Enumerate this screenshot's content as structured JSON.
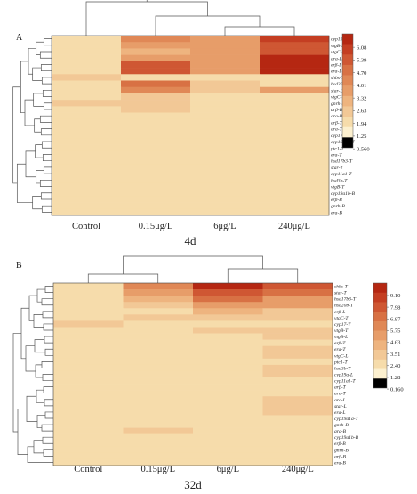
{
  "figure": {
    "palette": [
      "#fcf0cf",
      "#f6dcab",
      "#f2c896",
      "#eeb47f",
      "#e79d69",
      "#e08856",
      "#d87144",
      "#cf5733",
      "#c43e22",
      "#b52712"
    ],
    "legend_extreme_color": "#000000"
  },
  "chart_data": [
    {
      "type": "heatmap",
      "panel_label": "A",
      "title": "4d",
      "columns": [
        "Control",
        "0.15μg/L",
        "6μg/L",
        "240μg/L"
      ],
      "rows": [
        "cyp19a-L",
        "vtgB-L",
        "vtgC-L",
        "ara-L",
        "erβ-L",
        "era-L",
        "shbs-T",
        "hsd20b-T",
        "star-L",
        "vtgC-T",
        "gnrh-B",
        "arβ-B",
        "ara-B",
        "arβ-T",
        "ara-T",
        "cyp17-T",
        "cyp19a1a-T",
        "ptc1-T",
        "era-T",
        "hsd17b3-T",
        "star-T",
        "cyp11a1-T",
        "hsd3b-T",
        "vtgB-T",
        "cyp19a1b-B",
        "erβ-B",
        "gnrh-B",
        "era-B"
      ],
      "values": [
        [
          1.2,
          3.8,
          3.2,
          5.8
        ],
        [
          1.2,
          3.5,
          3.2,
          5.5
        ],
        [
          1.2,
          2.6,
          3.2,
          5.2
        ],
        [
          1.2,
          3.4,
          3.2,
          6.5
        ],
        [
          1.2,
          5.4,
          3.4,
          6.8
        ],
        [
          1.2,
          5.0,
          3.3,
          6.5
        ],
        [
          2.0,
          1.3,
          1.4,
          1.3
        ],
        [
          1.2,
          4.3,
          2.0,
          1.2
        ],
        [
          1.3,
          4.0,
          2.1,
          3.6
        ],
        [
          1.7,
          2.4,
          1.6,
          1.2
        ],
        [
          1.9,
          2.4,
          1.3,
          1.2
        ],
        [
          1.8,
          2.4,
          1.2,
          1.2
        ],
        [
          1.8,
          1.2,
          1.2,
          1.2
        ],
        [
          1.4,
          1.2,
          1.2,
          1.2
        ],
        [
          1.4,
          1.2,
          1.2,
          1.2
        ],
        [
          1.2,
          1.2,
          1.2,
          1.2
        ],
        [
          1.2,
          1.2,
          1.2,
          1.2
        ],
        [
          1.2,
          1.2,
          1.2,
          1.2
        ],
        [
          1.2,
          1.2,
          1.2,
          1.2
        ],
        [
          1.5,
          1.3,
          1.2,
          1.2
        ],
        [
          1.5,
          1.3,
          1.2,
          1.2
        ],
        [
          1.5,
          1.3,
          1.2,
          1.2
        ],
        [
          1.5,
          1.3,
          1.2,
          1.2
        ],
        [
          1.5,
          1.2,
          1.2,
          1.2
        ],
        [
          1.5,
          1.3,
          1.2,
          1.2
        ],
        [
          1.5,
          1.3,
          1.2,
          1.2
        ],
        [
          1.5,
          1.3,
          1.2,
          1.2
        ],
        [
          1.5,
          1.3,
          1.2,
          1.2
        ]
      ],
      "legend": {
        "ticks": [
          "6.08",
          "5.39",
          "4.70",
          "4.01",
          "3.32",
          "2.63",
          "1.94",
          "1.25",
          "0.560"
        ],
        "range": [
          0.56,
          6.77
        ]
      }
    },
    {
      "type": "heatmap",
      "panel_label": "B",
      "title": "32d",
      "columns": [
        "Control",
        "0.15μg/L",
        "6μg/L",
        "240μg/L"
      ],
      "rows": [
        "shbs-T",
        "star-T",
        "hsd17b3-T",
        "hsd20b-T",
        "erβ-L",
        "vtgC-T",
        "cyp17-T",
        "vtgB-T",
        "vtgB-L",
        "erβ-T",
        "era-T",
        "vtgC-L",
        "ptc1-T",
        "hsd3b-T",
        "cyp19a-L",
        "cyp11a1-T",
        "arβ-T",
        "ara-T",
        "ara-L",
        "star-L",
        "era-L",
        "cyp19a1a-T",
        "gnrh-B",
        "ara-B",
        "cyp19a1b-B",
        "erβ-B",
        "gnrh-B",
        "arβ-B",
        "era-B"
      ],
      "values": [
        [
          1.3,
          5.5,
          9.6,
          7.4
        ],
        [
          1.3,
          4.8,
          8.2,
          6.7
        ],
        [
          1.3,
          3.2,
          6.4,
          4.4
        ],
        [
          1.3,
          2.8,
          4.6,
          4.2
        ],
        [
          1.2,
          1.2,
          3.5,
          2.6
        ],
        [
          1.3,
          3.0,
          2.6,
          2.6
        ],
        [
          2.2,
          1.3,
          1.8,
          1.4
        ],
        [
          1.3,
          1.3,
          3.0,
          2.8
        ],
        [
          1.3,
          1.3,
          1.4,
          2.9
        ],
        [
          1.3,
          1.3,
          1.2,
          1.2
        ],
        [
          1.2,
          1.2,
          1.2,
          2.4
        ],
        [
          1.2,
          1.2,
          1.2,
          2.4
        ],
        [
          1.2,
          1.2,
          1.2,
          1.2
        ],
        [
          1.2,
          1.2,
          1.2,
          2.4
        ],
        [
          1.2,
          1.2,
          1.2,
          2.4
        ],
        [
          1.2,
          1.2,
          1.2,
          1.2
        ],
        [
          1.2,
          1.2,
          1.2,
          1.2
        ],
        [
          1.2,
          1.2,
          1.2,
          1.2
        ],
        [
          1.2,
          1.2,
          1.2,
          2.2
        ],
        [
          1.2,
          1.2,
          1.2,
          2.2
        ],
        [
          1.2,
          1.2,
          1.2,
          2.2
        ],
        [
          1.3,
          1.3,
          1.2,
          1.2
        ],
        [
          1.2,
          1.4,
          1.2,
          1.2
        ],
        [
          2.1,
          2.9,
          1.2,
          1.2
        ],
        [
          1.2,
          2.0,
          1.2,
          1.2
        ],
        [
          1.2,
          1.3,
          1.2,
          1.2
        ],
        [
          1.2,
          1.3,
          1.2,
          1.2
        ],
        [
          1.2,
          1.2,
          1.2,
          1.2
        ],
        [
          1.2,
          1.2,
          1.2,
          1.2
        ]
      ],
      "legend": {
        "ticks": [
          "9.10",
          "7.98",
          "6.87",
          "5.75",
          "4.63",
          "3.51",
          "2.40",
          "1.28",
          "0.160"
        ],
        "range": [
          0.16,
          10.22
        ]
      }
    }
  ]
}
